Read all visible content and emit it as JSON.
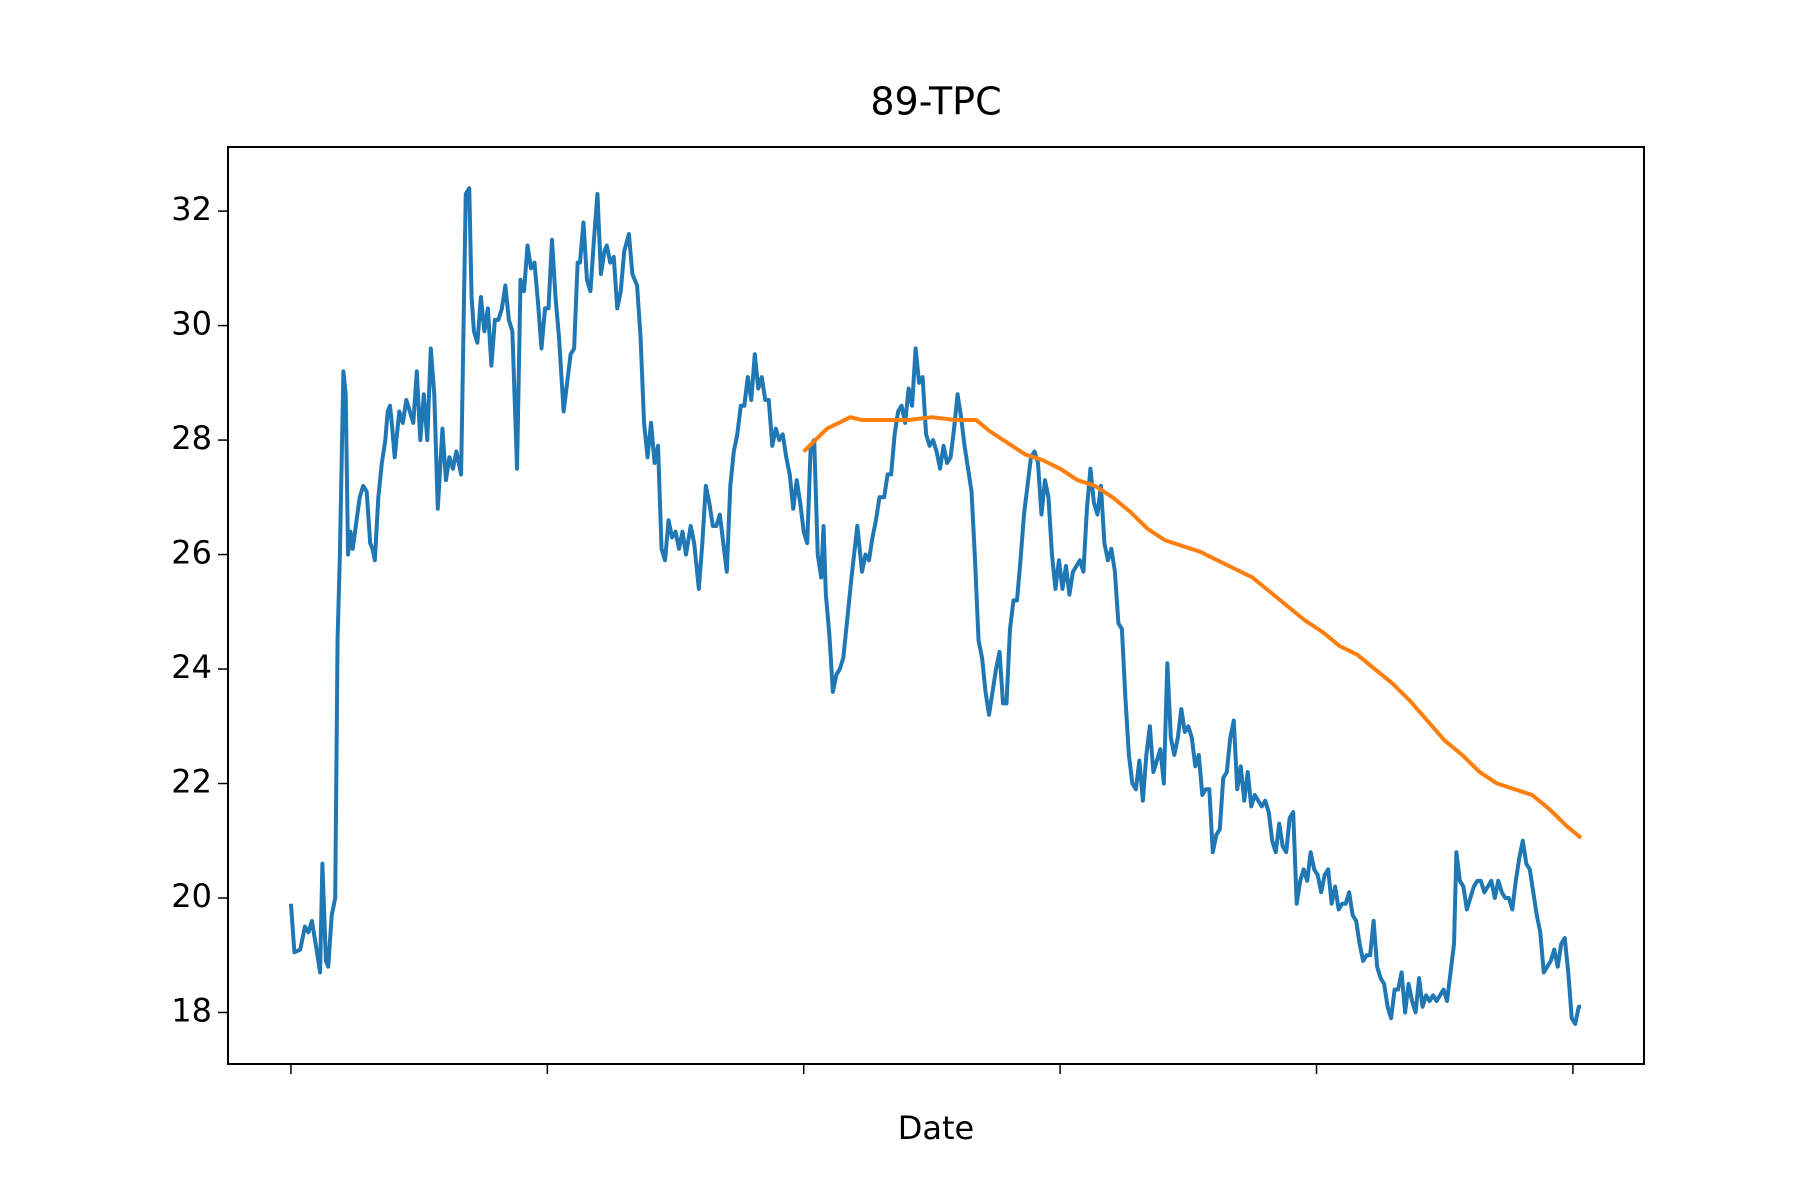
{
  "chart_data": {
    "type": "line",
    "title": "89-TPC",
    "x_label": "Date",
    "xlim": [
      -54,
      1161
    ],
    "xticks": [
      0,
      220,
      440,
      660,
      880,
      1100
    ],
    "ylim": [
      17.1,
      33.12
    ],
    "yticks": [
      18,
      20,
      22,
      24,
      26,
      28,
      30,
      32
    ],
    "grid": false,
    "series": [
      {
        "color": "#1f77b4",
        "x": [
          0,
          3,
          8,
          12,
          15,
          18,
          22,
          25,
          27,
          30,
          32,
          35,
          38,
          40,
          42,
          45,
          47,
          49,
          51,
          53,
          55,
          59,
          62,
          65,
          68,
          70,
          72,
          75,
          78,
          81,
          83,
          85,
          87,
          89,
          93,
          96,
          99,
          102,
          105,
          108,
          111,
          114,
          117,
          120,
          123,
          126,
          130,
          133,
          136,
          139,
          142,
          146,
          150,
          153,
          155,
          157,
          160,
          163,
          166,
          169,
          172,
          175,
          178,
          181,
          184,
          187,
          190,
          194,
          197,
          200,
          203,
          206,
          209,
          212,
          215,
          218,
          221,
          224,
          227,
          230,
          234,
          237,
          240,
          243,
          246,
          248,
          251,
          254,
          257,
          260,
          263,
          266,
          269,
          271,
          274,
          277,
          280,
          283,
          286,
          290,
          293,
          297,
          300,
          303,
          306,
          309,
          312,
          315,
          318,
          321,
          324,
          327,
          330,
          333,
          336,
          339,
          343,
          346,
          350,
          353,
          356,
          359,
          362,
          365,
          368,
          371,
          374,
          377,
          380,
          383,
          386,
          389,
          392,
          395,
          398,
          401,
          404,
          407,
          410,
          413,
          416,
          419,
          422,
          425,
          428,
          431,
          434,
          437,
          440,
          443,
          446,
          449,
          452,
          455,
          457,
          459,
          462,
          465,
          468,
          471,
          474,
          478,
          481,
          486,
          490,
          493,
          496,
          499,
          502,
          505,
          509,
          512,
          515,
          518,
          521,
          524,
          527,
          530,
          533,
          536,
          539,
          542,
          545,
          548,
          551,
          554,
          557,
          560,
          563,
          566,
          569,
          572,
          575,
          578,
          581,
          584,
          587,
          590,
          593,
          596,
          599,
          602,
          605,
          608,
          611,
          614,
          617,
          620,
          623,
          626,
          629,
          632,
          635,
          638,
          641,
          644,
          647,
          650,
          653,
          656,
          659,
          662,
          665,
          668,
          671,
          674,
          677,
          680,
          683,
          686,
          689,
          692,
          695,
          698,
          701,
          704,
          707,
          710,
          713,
          716,
          719,
          722,
          725,
          728,
          731,
          734,
          737,
          740,
          743,
          746,
          749,
          752,
          755,
          758,
          761,
          764,
          767,
          770,
          773,
          776,
          779,
          782,
          785,
          788,
          791,
          794,
          797,
          800,
          803,
          806,
          809,
          812,
          815,
          818,
          821,
          824,
          827,
          830,
          833,
          836,
          839,
          842,
          845,
          848,
          851,
          854,
          857,
          860,
          863,
          866,
          869,
          872,
          875,
          878,
          881,
          884,
          887,
          890,
          893,
          896,
          899,
          902,
          905,
          908,
          911,
          914,
          917,
          920,
          923,
          926,
          929,
          932,
          935,
          938,
          941,
          944,
          947,
          950,
          953,
          956,
          959,
          962,
          965,
          968,
          971,
          974,
          977,
          980,
          983,
          986,
          989,
          992,
          995,
          998,
          1000,
          1003,
          1006,
          1009,
          1012,
          1015,
          1018,
          1021,
          1024,
          1027,
          1030,
          1033,
          1036,
          1039,
          1042,
          1045,
          1048,
          1051,
          1054,
          1057,
          1060,
          1063,
          1066,
          1069,
          1072,
          1075,
          1078,
          1081,
          1084,
          1087,
          1090,
          1093,
          1096,
          1099,
          1102,
          1105,
          1107
        ],
        "values": [
          19.9,
          19.05,
          19.1,
          19.5,
          19.4,
          19.6,
          19.1,
          18.7,
          20.6,
          18.9,
          18.8,
          19.7,
          20.0,
          24.5,
          26,
          29.2,
          28.8,
          26.0,
          26.4,
          26.1,
          26.4,
          27.0,
          27.2,
          27.1,
          26.2,
          26.1,
          25.9,
          27.0,
          27.6,
          28.0,
          28.5,
          28.6,
          28.2,
          27.7,
          28.5,
          28.3,
          28.7,
          28.5,
          28.3,
          29.2,
          28.0,
          28.8,
          28.0,
          29.6,
          28.8,
          26.8,
          28.2,
          27.3,
          27.7,
          27.5,
          27.8,
          27.4,
          32.3,
          32.4,
          30.5,
          29.9,
          29.7,
          30.5,
          29.9,
          30.3,
          29.3,
          30.1,
          30.1,
          30.3,
          30.7,
          30.1,
          29.9,
          27.5,
          30.8,
          30.6,
          31.4,
          31.0,
          31.1,
          30.4,
          29.6,
          30.3,
          30.3,
          31.5,
          30.5,
          29.8,
          28.5,
          29.0,
          29.5,
          29.6,
          31.1,
          31.1,
          31.8,
          30.8,
          30.6,
          31.5,
          32.3,
          30.9,
          31.3,
          31.4,
          31.1,
          31.2,
          30.3,
          30.6,
          31.3,
          31.6,
          30.9,
          30.7,
          29.8,
          28.3,
          27.7,
          28.3,
          27.6,
          27.9,
          26.1,
          25.9,
          26.6,
          26.3,
          26.4,
          26.1,
          26.4,
          26.0,
          26.5,
          26.2,
          25.4,
          26.2,
          27.2,
          26.9,
          26.5,
          26.5,
          26.7,
          26.2,
          25.7,
          27.2,
          27.8,
          28.1,
          28.6,
          28.6,
          29.1,
          28.7,
          29.5,
          28.9,
          29.1,
          28.7,
          28.7,
          27.9,
          28.2,
          28.0,
          28.1,
          27.7,
          27.4,
          26.8,
          27.3,
          26.9,
          26.4,
          26.2,
          27.9,
          28.0,
          26.0,
          25.6,
          26.5,
          25.3,
          24.6,
          23.6,
          23.9,
          24.0,
          24.2,
          25.0,
          25.6,
          26.5,
          25.7,
          26.0,
          25.9,
          26.3,
          26.6,
          27.0,
          27.0,
          27.4,
          27.4,
          28.1,
          28.5,
          28.6,
          28.3,
          28.9,
          28.6,
          29.6,
          29.0,
          29.1,
          28.1,
          27.9,
          28.0,
          27.8,
          27.5,
          27.9,
          27.6,
          27.7,
          28.2,
          28.8,
          28.4,
          27.9,
          27.5,
          27.1,
          25.9,
          24.5,
          24.2,
          23.6,
          23.2,
          23.6,
          24.0,
          24.3,
          23.4,
          23.4,
          24.7,
          25.2,
          25.2,
          25.9,
          26.7,
          27.2,
          27.7,
          27.8,
          27.6,
          26.7,
          27.3,
          27.0,
          26.0,
          25.4,
          25.9,
          25.4,
          25.8,
          25.3,
          25.7,
          25.8,
          25.9,
          25.7,
          26.8,
          27.5,
          26.9,
          26.7,
          27.2,
          26.2,
          25.9,
          26.1,
          25.7,
          24.8,
          24.7,
          23.5,
          22.5,
          22.0,
          21.9,
          22.4,
          21.7,
          22.5,
          23.0,
          22.2,
          22.4,
          22.6,
          22.0,
          24.1,
          22.8,
          22.5,
          22.8,
          23.3,
          22.9,
          23.0,
          22.8,
          22.3,
          22.5,
          21.8,
          21.9,
          21.9,
          20.8,
          21.1,
          21.2,
          22.1,
          22.2,
          22.8,
          23.1,
          21.9,
          22.3,
          21.7,
          22.2,
          21.6,
          21.8,
          21.7,
          21.6,
          21.7,
          21.5,
          21.0,
          20.8,
          21.3,
          20.9,
          20.8,
          21.4,
          21.5,
          19.9,
          20.3,
          20.5,
          20.3,
          20.8,
          20.5,
          20.4,
          20.1,
          20.4,
          20.5,
          19.9,
          20.2,
          19.8,
          19.9,
          19.9,
          20.1,
          19.7,
          19.6,
          19.2,
          18.9,
          19.0,
          19.0,
          19.6,
          18.8,
          18.6,
          18.5,
          18.1,
          17.9,
          18.4,
          18.4,
          18.7,
          18.0,
          18.5,
          18.2,
          18.0,
          18.6,
          18.1,
          18.3,
          18.2,
          18.3,
          18.2,
          18.3,
          18.4,
          18.2,
          18.7,
          19.2,
          20.8,
          20.3,
          20.2,
          19.8,
          20.0,
          20.2,
          20.3,
          20.3,
          20.1,
          20.2,
          20.3,
          20.0,
          20.3,
          20.1,
          20.0,
          20.0,
          19.8,
          20.3,
          20.7,
          21.0,
          20.6,
          20.5,
          20.1,
          19.7,
          19.4,
          18.7,
          18.8,
          18.9,
          19.1,
          18.8,
          19.2,
          19.3,
          18.7,
          17.9,
          17.8,
          18.1,
          18.1
        ]
      },
      {
        "color": "#ff7f0e",
        "x": [
          440,
          450,
          460,
          470,
          480,
          490,
          510,
          530,
          550,
          570,
          588,
          600,
          615,
          630,
          645,
          660,
          675,
          690,
          705,
          720,
          735,
          750,
          765,
          780,
          795,
          810,
          825,
          840,
          855,
          870,
          885,
          900,
          915,
          930,
          945,
          960,
          975,
          990,
          1005,
          1020,
          1035,
          1050,
          1065,
          1080,
          1095,
          1107
        ],
        "values": [
          27.8,
          28.0,
          28.2,
          28.3,
          28.4,
          28.35,
          28.35,
          28.35,
          28.4,
          28.35,
          28.35,
          28.15,
          27.95,
          27.75,
          27.65,
          27.5,
          27.3,
          27.2,
          27.0,
          26.75,
          26.45,
          26.25,
          26.15,
          26.05,
          25.9,
          25.75,
          25.6,
          25.35,
          25.1,
          24.85,
          24.65,
          24.4,
          24.25,
          24.0,
          23.75,
          23.45,
          23.1,
          22.75,
          22.5,
          22.2,
          22.0,
          21.9,
          21.8,
          21.55,
          21.25,
          21.05
        ]
      }
    ]
  }
}
